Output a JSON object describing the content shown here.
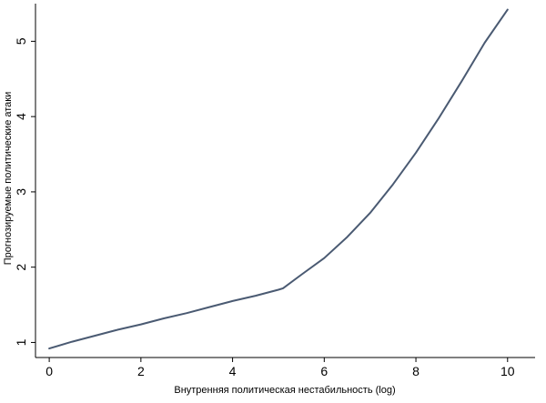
{
  "chart_data": {
    "type": "line",
    "title": "",
    "xlabel": "Внутренняя политическая нестабильность (log)",
    "ylabel": "Прогнозируемые политические атаки",
    "xlim": [
      -0.3,
      10.6
    ],
    "ylim": [
      0.8,
      5.5
    ],
    "xticks": [
      0,
      2,
      4,
      6,
      8,
      10
    ],
    "yticks": [
      1,
      2,
      3,
      4,
      5
    ],
    "grid": false,
    "series": [
      {
        "color": "#4a5a72",
        "x": [
          0,
          0.5,
          1,
          1.5,
          2,
          2.5,
          3,
          3.5,
          4,
          4.5,
          5,
          5.1,
          5.5,
          6,
          6.5,
          7,
          7.5,
          8,
          8.5,
          9,
          9.5,
          10
        ],
        "y": [
          0.92,
          1.01,
          1.09,
          1.17,
          1.24,
          1.32,
          1.39,
          1.47,
          1.55,
          1.62,
          1.7,
          1.72,
          1.9,
          2.12,
          2.4,
          2.72,
          3.1,
          3.52,
          3.98,
          4.47,
          4.98,
          5.42
        ]
      }
    ]
  }
}
